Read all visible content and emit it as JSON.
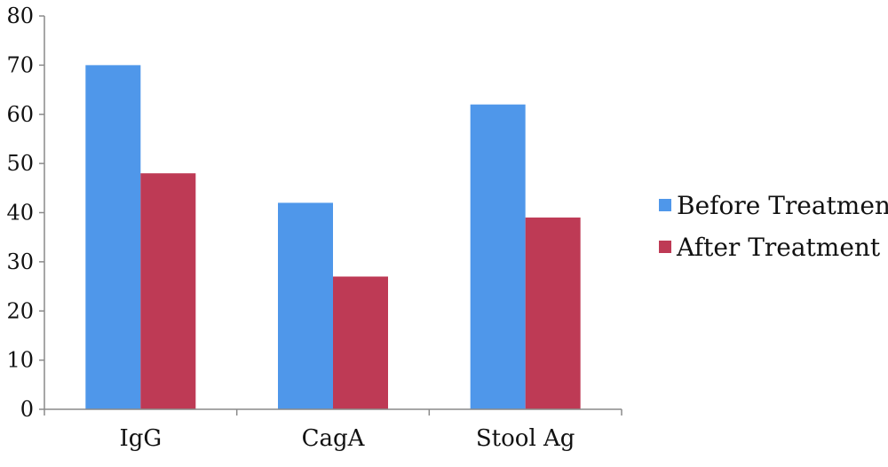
{
  "chart_data": {
    "type": "bar",
    "categories": [
      "IgG",
      "CagA",
      "Stool Ag"
    ],
    "series": [
      {
        "name": "Before Treatment",
        "values": [
          70,
          42,
          62
        ],
        "color": "#4F97EA"
      },
      {
        "name": "After Treatment",
        "values": [
          48,
          27,
          39
        ],
        "color": "#BE3A55"
      }
    ],
    "yticks": [
      "0",
      "10",
      "20",
      "30",
      "40",
      "50",
      "60",
      "70",
      "80"
    ],
    "ylim": [
      0,
      80
    ],
    "grid": false,
    "legend": "right"
  }
}
